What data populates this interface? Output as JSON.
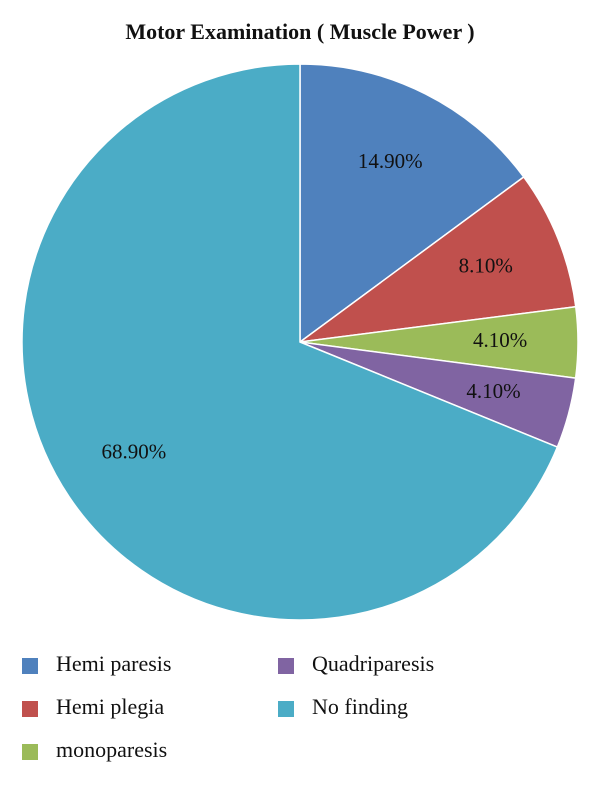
{
  "chart_data": {
    "type": "pie",
    "title": "Motor Examination ( Muscle Power )",
    "categories": [
      "Hemi paresis",
      "Hemi plegia",
      "monoparesis",
      "Quadriparesis",
      "No finding"
    ],
    "values": [
      14.9,
      8.1,
      4.1,
      4.1,
      68.9
    ],
    "value_labels": [
      "14.90%",
      "8.10%",
      "4.10%",
      "4.10%",
      "68.90%"
    ],
    "colors": [
      "#4f81bd",
      "#c0504d",
      "#9bbb59",
      "#8064a2",
      "#4bacc6"
    ]
  }
}
